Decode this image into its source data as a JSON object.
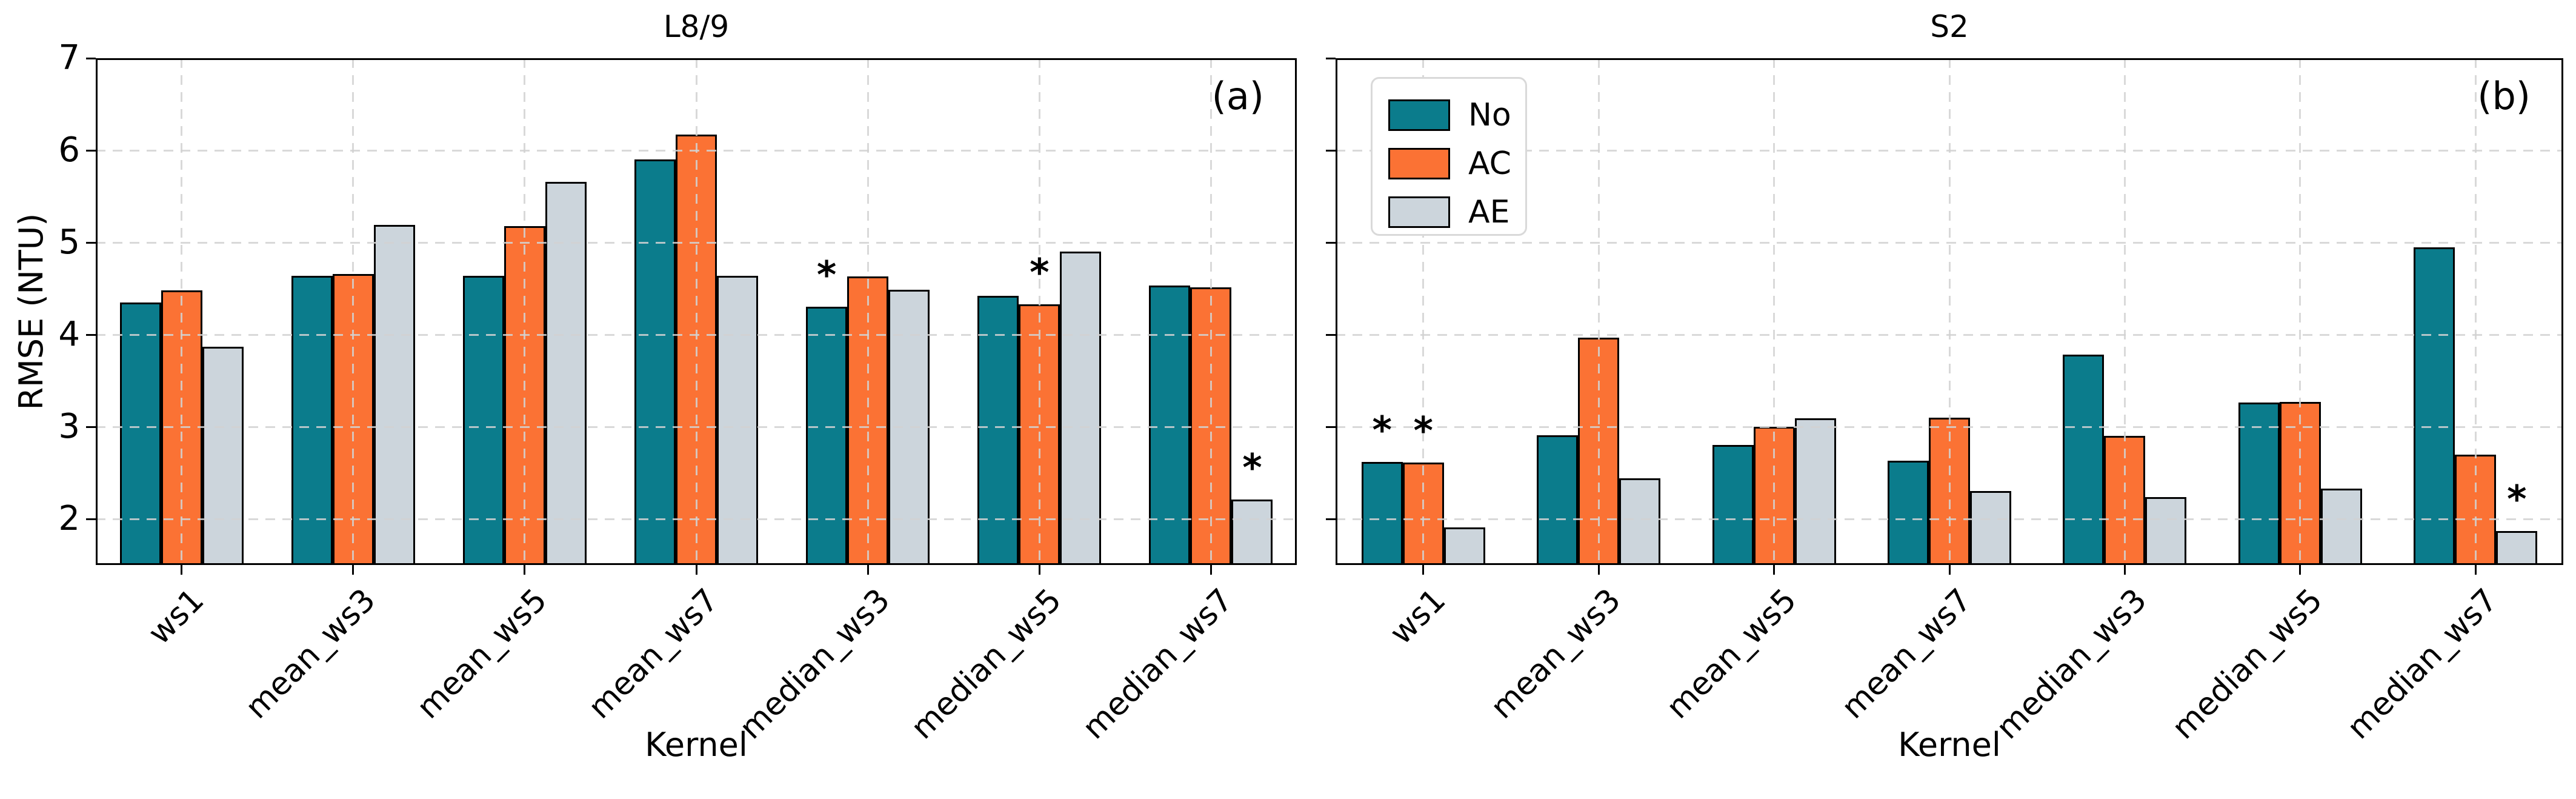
{
  "figure": {
    "kind": "two-panel grouped bar chart",
    "background": "#ffffff"
  },
  "colors": {
    "No": "#0b7c8c",
    "AC": "#fb7234",
    "AE": "#ccd5dc",
    "bar_edge": "#000000",
    "grid": "#d2d2d2",
    "spine": "#000000",
    "legend_border": "#d9d9d9",
    "text": "#000000"
  },
  "axes": {
    "ylabel": "RMSE (NTU)",
    "xlabel": "Kernel",
    "yticks": [
      2,
      3,
      4,
      5,
      6,
      7
    ],
    "ylim": [
      1.5,
      7
    ],
    "grid": "dashed, both axes, drawn over bars",
    "xtick_rotation": 45
  },
  "legend": {
    "position": "upper-left of panel (b)",
    "items": [
      {
        "label": "No",
        "series": "No"
      },
      {
        "label": "AC",
        "series": "AC"
      },
      {
        "label": "AE",
        "series": "AE"
      }
    ]
  },
  "chart_data": [
    {
      "type": "bar",
      "title": "L8/9",
      "corner_label": "(a)",
      "xlabel": "Kernel",
      "ylabel": "RMSE (NTU)",
      "ylim": [
        1.5,
        7
      ],
      "categories": [
        "ws1",
        "mean_ws3",
        "mean_ws5",
        "mean_ws7",
        "median_ws3",
        "median_ws5",
        "median_ws7"
      ],
      "series": [
        {
          "name": "No",
          "values": [
            4.35,
            4.64,
            4.64,
            5.9,
            4.3,
            4.42,
            4.53
          ]
        },
        {
          "name": "AC",
          "values": [
            4.48,
            4.66,
            5.18,
            6.17,
            4.63,
            4.33,
            4.51
          ]
        },
        {
          "name": "AE",
          "values": [
            3.87,
            5.19,
            5.66,
            4.64,
            4.49,
            4.9,
            2.21
          ]
        }
      ],
      "significance_marks": [
        {
          "category": "median_ws3",
          "series": "No",
          "symbol": "*"
        },
        {
          "category": "median_ws5",
          "series": "AC",
          "symbol": "*"
        },
        {
          "category": "median_ws7",
          "series": "AE",
          "symbol": "*"
        }
      ]
    },
    {
      "type": "bar",
      "title": "S2",
      "corner_label": "(b)",
      "xlabel": "Kernel",
      "ylabel": "RMSE (NTU)",
      "ylim": [
        1.5,
        7
      ],
      "categories": [
        "ws1",
        "mean_ws3",
        "mean_ws5",
        "mean_ws7",
        "median_ws3",
        "median_ws5",
        "median_ws7"
      ],
      "series": [
        {
          "name": "No",
          "values": [
            2.62,
            2.91,
            2.8,
            2.63,
            3.78,
            3.26,
            4.95
          ]
        },
        {
          "name": "AC",
          "values": [
            2.61,
            3.97,
            3.0,
            3.1,
            2.9,
            3.27,
            2.7
          ]
        },
        {
          "name": "AE",
          "values": [
            1.91,
            2.44,
            3.09,
            2.3,
            2.24,
            2.33,
            1.87
          ]
        }
      ],
      "significance_marks": [
        {
          "category": "ws1",
          "series": "No",
          "symbol": "*"
        },
        {
          "category": "ws1",
          "series": "AC",
          "symbol": "*"
        },
        {
          "category": "median_ws7",
          "series": "AE",
          "symbol": "*"
        }
      ]
    }
  ]
}
